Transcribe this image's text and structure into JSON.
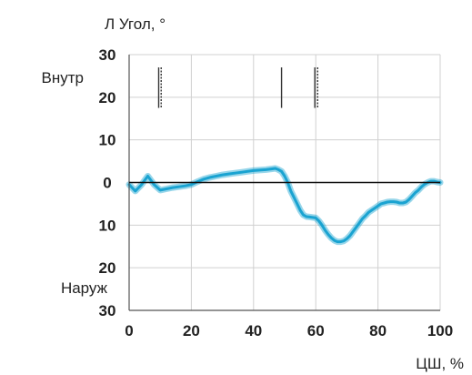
{
  "chart_data": {
    "type": "line",
    "title": "Л Угол, °",
    "xlabel": "ЦШ, %",
    "ylabel": "",
    "side_labels": {
      "upper": "Внутр",
      "lower": "Наруж"
    },
    "xlim": [
      0,
      100
    ],
    "ylim": [
      -30,
      30
    ],
    "x_ticks": [
      0,
      20,
      40,
      60,
      80,
      100
    ],
    "x_tick_labels": [
      "0",
      "20",
      "40",
      "60",
      "80",
      "100"
    ],
    "y_ticks": [
      30,
      20,
      10,
      0,
      -10,
      -20,
      -30
    ],
    "y_tick_labels": [
      "30",
      "20",
      "10",
      "0",
      "10",
      "20",
      "30"
    ],
    "grid": true,
    "zero_line": true,
    "event_markers": [
      {
        "x": 9.5,
        "style": "solid"
      },
      {
        "x": 10.3,
        "style": "dashed"
      },
      {
        "x": 49.0,
        "style": "solid"
      },
      {
        "x": 59.7,
        "style": "solid"
      },
      {
        "x": 60.6,
        "style": "dashed"
      }
    ],
    "series": [
      {
        "color": "#1aa3d1",
        "x": [
          0,
          2,
          4,
          6,
          8,
          10,
          12,
          14,
          16,
          18,
          20,
          22,
          24,
          26,
          28,
          30,
          32,
          34,
          36,
          38,
          40,
          42,
          44,
          46,
          47,
          48,
          49,
          50,
          51,
          52,
          53,
          54,
          55,
          56,
          57,
          58,
          59,
          60,
          61,
          62,
          63,
          64,
          65,
          66,
          67,
          68,
          69,
          70,
          71,
          72,
          73,
          74,
          75,
          76,
          77,
          78,
          79,
          80,
          81,
          82,
          83,
          84,
          85,
          86,
          87,
          88,
          89,
          90,
          91,
          92,
          93,
          94,
          95,
          96,
          97,
          98,
          99,
          100
        ],
        "values": [
          -0.5,
          -2.0,
          -0.5,
          1.5,
          -0.5,
          -1.8,
          -1.5,
          -1.2,
          -1.0,
          -0.8,
          -0.5,
          0.2,
          0.8,
          1.2,
          1.5,
          1.8,
          2.0,
          2.2,
          2.4,
          2.6,
          2.8,
          2.9,
          3.0,
          3.2,
          3.3,
          3.0,
          2.6,
          1.5,
          0.0,
          -2.0,
          -3.5,
          -5.0,
          -6.5,
          -7.6,
          -8.0,
          -8.1,
          -8.2,
          -8.3,
          -9.0,
          -10.0,
          -11.2,
          -12.2,
          -13.0,
          -13.6,
          -13.9,
          -13.9,
          -13.7,
          -13.2,
          -12.5,
          -11.5,
          -10.5,
          -9.5,
          -8.5,
          -7.8,
          -7.0,
          -6.5,
          -6.0,
          -5.5,
          -5.0,
          -4.8,
          -4.6,
          -4.5,
          -4.5,
          -4.6,
          -4.8,
          -4.8,
          -4.6,
          -4.0,
          -3.2,
          -2.4,
          -1.8,
          -1.0,
          -0.4,
          0.0,
          0.3,
          0.3,
          0.1,
          0.0
        ]
      }
    ]
  }
}
